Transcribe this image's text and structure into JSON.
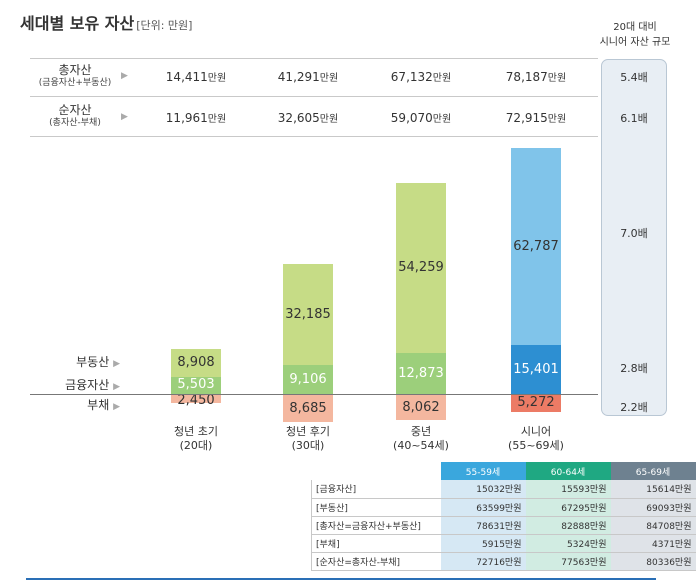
{
  "title": "세대별 보유 자산",
  "unit": "[단위: 만원]",
  "ratio_header": {
    "line1": "20대 대비",
    "line2": "시니어 자산 규모"
  },
  "ratios": [
    "5.4배",
    "6.1배",
    "7.0배",
    "2.8배",
    "2.2배"
  ],
  "summary_rows": [
    {
      "label": "총자산",
      "sublabel": "(금융자산+부동산)",
      "values": [
        "14,411",
        "41,291",
        "67,132",
        "78,187"
      ],
      "suffix": "만원"
    },
    {
      "label": "순자산",
      "sublabel": "(총자산-부채)",
      "values": [
        "11,961",
        "32,605",
        "59,070",
        "72,915"
      ],
      "suffix": "만원"
    }
  ],
  "arrow_glyph": "▶",
  "series_labels": {
    "real_estate": "부동산",
    "financial": "금융자산",
    "debt": "부채"
  },
  "colors": {
    "real_estate": "#c6dc86",
    "financial": "#9ccf7b",
    "debt": "#f4b79f",
    "senior_real_estate": "#80c4ea",
    "senior_financial": "#2d8fd2",
    "senior_debt": "#ec7b65",
    "ratio_box": "#e8eef4",
    "table_h1": "#3aa7dd",
    "table_h2": "#1fa882",
    "table_h3": "#6e8190"
  },
  "chart_data": {
    "type": "bar",
    "stacked": true,
    "categories": [
      "청년 초기\n(20대)",
      "청년 후기\n(30대)",
      "중년\n(40~54세)",
      "시니어\n(55~69세)"
    ],
    "category_lines": [
      [
        "청년 초기",
        "(20대)"
      ],
      [
        "청년 후기",
        "(30대)"
      ],
      [
        "중년",
        "(40~54세)"
      ],
      [
        "시니어",
        "(55~69세)"
      ]
    ],
    "series": [
      {
        "name": "부동산",
        "values": [
          8908,
          32185,
          54259,
          62787
        ]
      },
      {
        "name": "금융자산",
        "values": [
          5503,
          9106,
          12873,
          15401
        ]
      },
      {
        "name": "부채",
        "values": [
          -2450,
          -8685,
          -8062,
          -5272
        ]
      }
    ],
    "value_labels": {
      "부동산": [
        "8,908",
        "32,185",
        "54,259",
        "62,787"
      ],
      "금융자산": [
        "5,503",
        "9,106",
        "12,873",
        "15,401"
      ],
      "부채": [
        "2,450",
        "8,685",
        "8,062",
        "5,272"
      ]
    },
    "xlabel": "",
    "ylabel": "만원",
    "ylim": [
      -10000,
      80000
    ]
  },
  "table": {
    "headers": [
      "55-59세",
      "60-64세",
      "65-69세"
    ],
    "rows": [
      {
        "label": "[금융자산]",
        "values": [
          "15032만원",
          "15593만원",
          "15614만원"
        ]
      },
      {
        "label": "[부동산]",
        "values": [
          "63599만원",
          "67295만원",
          "69093만원"
        ]
      },
      {
        "label": "[총자산=금융자산+부동산]",
        "values": [
          "78631만원",
          "82888만원",
          "84708만원"
        ]
      },
      {
        "label": "[부채]",
        "values": [
          "5915만원",
          "5324만원",
          "4371만원"
        ]
      },
      {
        "label": "[순자산=총자산-부채]",
        "values": [
          "72716만원",
          "77563만원",
          "80336만원"
        ]
      }
    ]
  }
}
